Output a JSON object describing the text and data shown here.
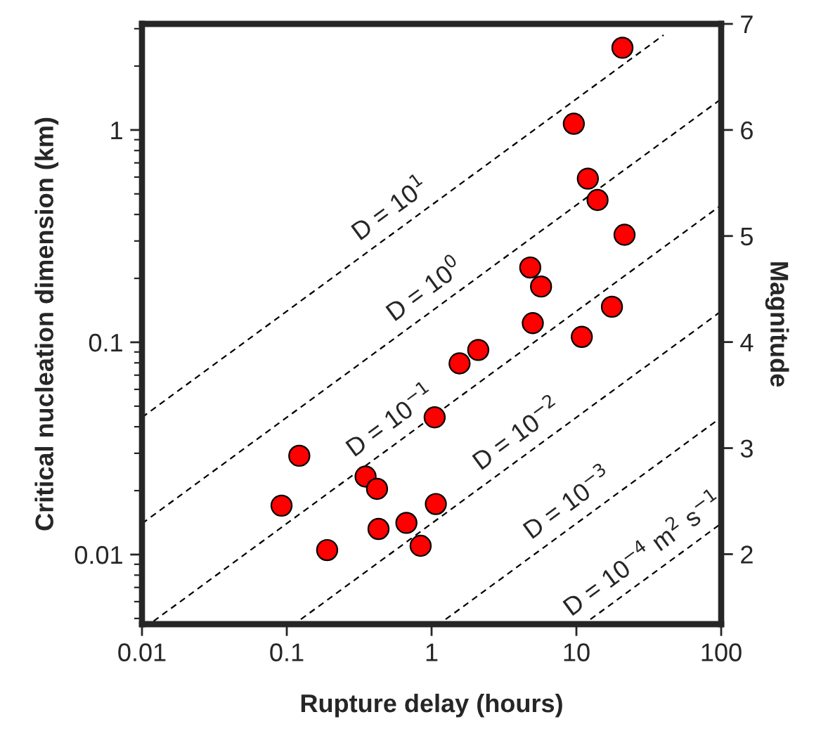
{
  "chart_data": {
    "type": "scatter",
    "xlabel": "Rupture delay (hours)",
    "ylabel": "Critical nucleation dimension (km)",
    "y2label": "Magnitude",
    "log": "xy",
    "grid": false,
    "legend": false,
    "xlim": [
      0.01,
      100
    ],
    "xticks": [
      0.01,
      0.1,
      1,
      10,
      100
    ],
    "ylim": [
      0.0047,
      3.16
    ],
    "yticks": [
      0.01,
      0.1,
      1
    ],
    "y2lim": [
      1.34,
      7
    ],
    "y2ticks": [
      2,
      3,
      4,
      5,
      6,
      7
    ],
    "series": [
      {
        "color": "#ff0000",
        "marker": "circle",
        "x": [
          20.8,
          9.6,
          12.0,
          14.0,
          21.5,
          4.8,
          5.7,
          17.6,
          5.0,
          10.9,
          2.1,
          1.56,
          1.05,
          0.122,
          0.35,
          0.42,
          0.092,
          1.07,
          0.67,
          0.43,
          0.84,
          0.19
        ],
        "values": [
          2.44,
          1.07,
          0.59,
          0.468,
          0.321,
          0.225,
          0.183,
          0.147,
          0.123,
          0.106,
          0.092,
          0.0795,
          0.0443,
          0.0292,
          0.0233,
          0.0204,
          0.017,
          0.0173,
          0.0141,
          0.0132,
          0.011,
          0.0105
        ]
      },
      {
        "type": "line",
        "color": "#000000",
        "line_style": "dashed",
        "marker": "none",
        "x": [
          0.01,
          40
        ],
        "values": [
          0.0443,
          2.8
        ]
      },
      {
        "type": "line",
        "color": "#000000",
        "line_style": "dashed",
        "marker": "none",
        "x": [
          0.01,
          100
        ],
        "values": [
          0.014,
          1.4
        ]
      },
      {
        "type": "line",
        "color": "#000000",
        "line_style": "dashed",
        "marker": "none",
        "x": [
          0.012,
          100
        ],
        "values": [
          0.00485,
          0.4427
        ]
      },
      {
        "type": "line",
        "color": "#000000",
        "line_style": "dashed",
        "marker": "none",
        "x": [
          0.125,
          100
        ],
        "values": [
          0.00495,
          0.14
        ]
      },
      {
        "type": "line",
        "color": "#000000",
        "line_style": "dashed",
        "marker": "none",
        "x": [
          1.25,
          100
        ],
        "values": [
          0.00495,
          0.04427
        ]
      },
      {
        "type": "line",
        "color": "#000000",
        "line_style": "dashed",
        "marker": "none",
        "x": [
          12.5,
          100
        ],
        "values": [
          0.00495,
          0.014
        ]
      }
    ],
    "annotations": [
      "D = 10$^{1}$",
      "D = 10$^{0}$",
      "D = 10$^{−1}$",
      "D = 10$^{−2}$",
      "D = 10$^{−3}$",
      "D = 10$^{−4}$ m$^{2}$ s$^{−1}$"
    ]
  }
}
